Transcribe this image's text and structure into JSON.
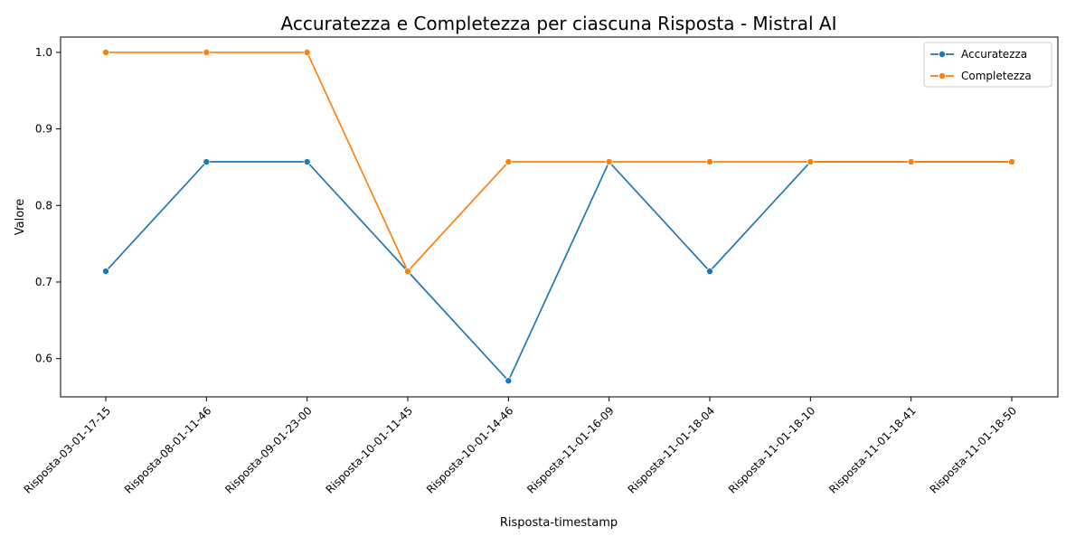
{
  "chart_data": {
    "type": "line",
    "title": "Accuratezza e Completezza per ciascuna Risposta - Mistral AI",
    "xlabel": "Risposta-timestamp",
    "ylabel": "Valore",
    "categories": [
      "Risposta-03-01-17-15",
      "Risposta-08-01-11-46",
      "Risposta-09-01-23-00",
      "Risposta-10-01-11-45",
      "Risposta-10-01-14-46",
      "Risposta-11-01-16-09",
      "Risposta-11-01-18-04",
      "Risposta-11-01-18-10",
      "Risposta-11-01-18-41",
      "Risposta-11-01-18-50"
    ],
    "series": [
      {
        "name": "Accuratezza",
        "color": "#1f77b4",
        "values": [
          0.714,
          0.857,
          0.857,
          0.714,
          0.571,
          0.857,
          0.714,
          0.857,
          0.857,
          0.857
        ]
      },
      {
        "name": "Completezza",
        "color": "#ff7f0e",
        "values": [
          1.0,
          1.0,
          1.0,
          0.714,
          0.857,
          0.857,
          0.857,
          0.857,
          0.857,
          0.857
        ]
      }
    ],
    "ylim": [
      0.55,
      1.02
    ],
    "yticks": [
      0.6,
      0.7,
      0.8,
      0.9,
      1.0
    ],
    "ytick_labels": [
      "0.6",
      "0.7",
      "0.8",
      "0.9",
      "1.0"
    ],
    "grid": false,
    "legend_position": "top-right"
  }
}
